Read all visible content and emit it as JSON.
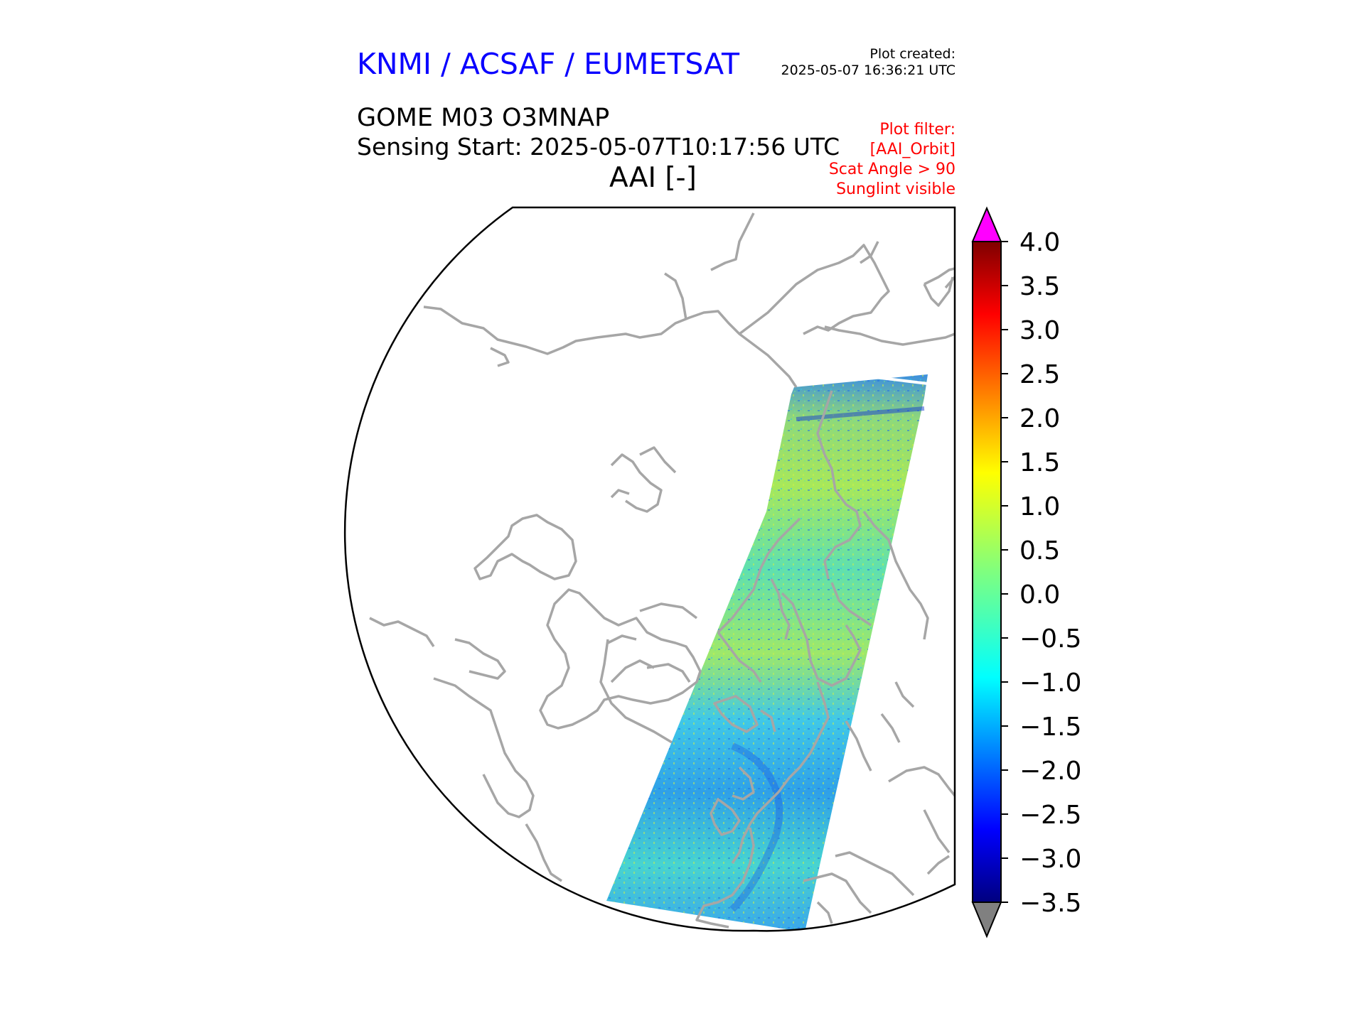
{
  "header": {
    "organisation": "KNMI / ACSAF / EUMETSAT",
    "plot_created_label": "Plot created:",
    "plot_created_value": "2025-05-07 16:36:21 UTC",
    "product": "GOME M03 O3MNAP",
    "sensing_start": "Sensing Start: 2025-05-07T10:17:56 UTC",
    "variable": "AAI [-]",
    "filters": [
      "Plot filter:",
      "[AAI_Orbit]",
      "Scat Angle > 90",
      "Sunglint visible"
    ]
  },
  "colors": {
    "title": "#0a00ff",
    "filter_text": "#ff0000",
    "coastline": "#a6a6a6",
    "over_color": "#ff00ff",
    "under_color": "#808080"
  },
  "colorbar": {
    "colormap": "jet",
    "min": -3.5,
    "max": 4.0,
    "extend": "both",
    "ticks": [
      "4.0",
      "3.5",
      "3.0",
      "2.5",
      "2.0",
      "1.5",
      "1.0",
      "0.5",
      "0.0",
      "−0.5",
      "−1.0",
      "−1.5",
      "−2.0",
      "−2.5",
      "−3.0",
      "−3.5"
    ]
  },
  "map": {
    "projection": "north polar stereographic (partial view)",
    "features": [
      "coastlines",
      "AAI swath (single orbit)"
    ]
  }
}
